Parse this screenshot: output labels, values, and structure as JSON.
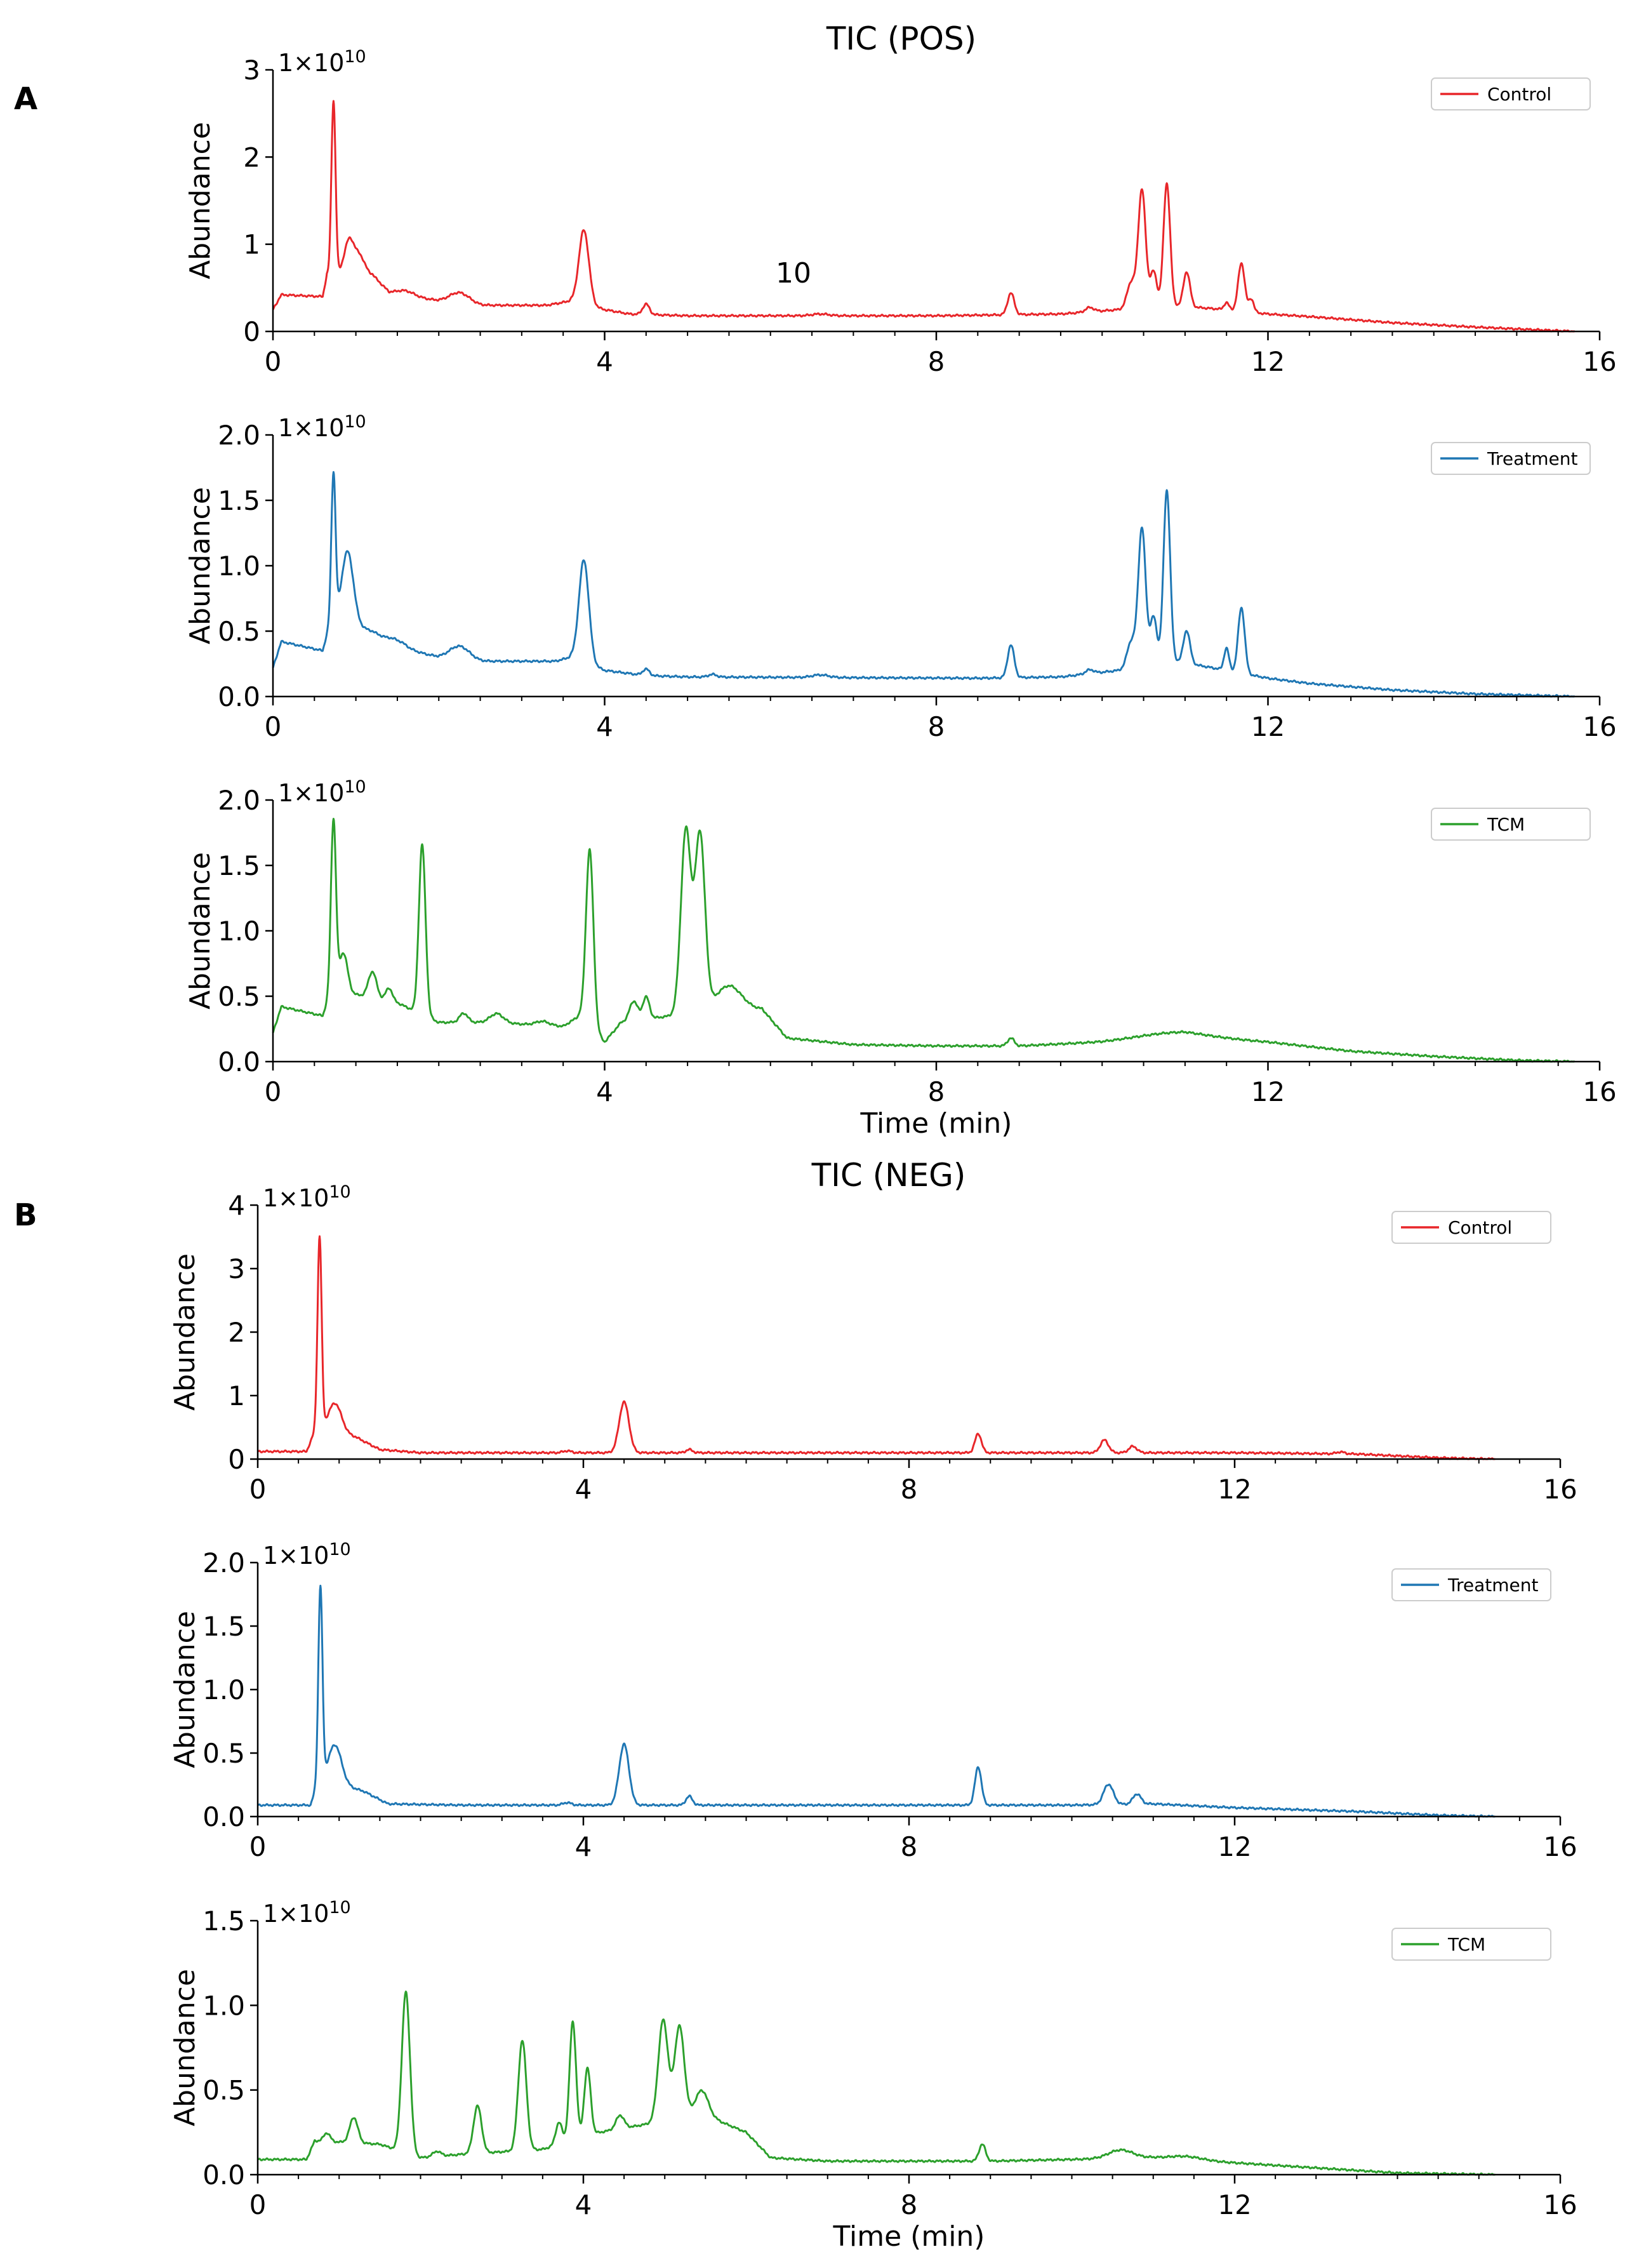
{
  "figure": {
    "panel_a": {
      "label": "A",
      "title": "TIC (POS)"
    },
    "panel_b": {
      "label": "B",
      "title": "TIC (NEG)"
    },
    "xlabel": "Time (min)",
    "stray_annotation": "10"
  },
  "colors": {
    "Control": "#e8262a",
    "Treatment": "#1f77b4",
    "TCM": "#2ca02c"
  },
  "chart_data": [
    {
      "type": "line",
      "id": "pos-control",
      "panel": "A",
      "title": "TIC (POS)",
      "series_name": "Control",
      "ylabel": "Abundance",
      "xlabel": "",
      "xlim": [
        0,
        16
      ],
      "ylim": [
        0,
        3
      ],
      "yticks": [
        "0",
        "1",
        "2",
        "3"
      ],
      "xticks": [
        "0",
        "4",
        "8",
        "12",
        "16"
      ],
      "scale_base": "1×10",
      "scale_exp": "10",
      "legend": "top-right",
      "xrange": [
        0,
        15.7
      ],
      "baseline": [
        [
          0,
          0.25
        ],
        [
          0.1,
          0.42
        ],
        [
          0.6,
          0.4
        ],
        [
          0.65,
          0.65
        ],
        [
          1.2,
          0.65
        ],
        [
          1.4,
          0.45
        ],
        [
          2.0,
          0.35
        ],
        [
          2.5,
          0.3
        ],
        [
          3.3,
          0.3
        ],
        [
          3.6,
          0.35
        ],
        [
          4.0,
          0.25
        ],
        [
          4.3,
          0.2
        ],
        [
          5.0,
          0.18
        ],
        [
          8.0,
          0.18
        ],
        [
          9.5,
          0.2
        ],
        [
          10.2,
          0.25
        ],
        [
          10.8,
          0.3
        ],
        [
          11.5,
          0.25
        ],
        [
          12.0,
          0.2
        ],
        [
          12.5,
          0.17
        ],
        [
          13.5,
          0.1
        ],
        [
          14.5,
          0.05
        ],
        [
          15.2,
          0.02
        ],
        [
          15.7,
          0
        ]
      ],
      "peaks": [
        [
          0.73,
          2.0,
          0.025
        ],
        [
          0.92,
          0.4,
          0.06
        ],
        [
          1.05,
          0.2,
          0.06
        ],
        [
          1.6,
          0.05,
          0.1
        ],
        [
          2.25,
          0.12,
          0.12
        ],
        [
          3.75,
          0.85,
          0.06
        ],
        [
          4.5,
          0.12,
          0.04
        ],
        [
          6.6,
          0.02,
          0.1
        ],
        [
          8.9,
          0.25,
          0.04
        ],
        [
          9.85,
          0.05,
          0.05
        ],
        [
          10.35,
          0.3,
          0.05
        ],
        [
          10.48,
          1.35,
          0.045
        ],
        [
          10.62,
          0.4,
          0.04
        ],
        [
          10.78,
          1.4,
          0.04
        ],
        [
          11.02,
          0.4,
          0.04
        ],
        [
          11.5,
          0.08,
          0.03
        ],
        [
          11.68,
          0.55,
          0.04
        ],
        [
          11.8,
          0.15,
          0.03
        ]
      ]
    },
    {
      "type": "line",
      "id": "pos-treatment",
      "panel": "A",
      "title": "",
      "series_name": "Treatment",
      "ylabel": "Abundance",
      "xlabel": "",
      "xlim": [
        0,
        16
      ],
      "ylim": [
        0,
        2
      ],
      "yticks": [
        "0.0",
        "0.5",
        "1.0",
        "1.5",
        "2.0"
      ],
      "xticks": [
        "0",
        "4",
        "8",
        "12",
        "16"
      ],
      "scale_base": "1×10",
      "scale_exp": "10",
      "legend": "top-right",
      "xrange": [
        0,
        15.7
      ],
      "baseline": [
        [
          0,
          0.22
        ],
        [
          0.1,
          0.42
        ],
        [
          0.6,
          0.35
        ],
        [
          0.7,
          0.6
        ],
        [
          1.2,
          0.5
        ],
        [
          1.5,
          0.38
        ],
        [
          2.0,
          0.3
        ],
        [
          2.5,
          0.27
        ],
        [
          3.4,
          0.27
        ],
        [
          3.6,
          0.3
        ],
        [
          4.0,
          0.2
        ],
        [
          4.5,
          0.16
        ],
        [
          5.0,
          0.15
        ],
        [
          8.5,
          0.14
        ],
        [
          9.5,
          0.15
        ],
        [
          10.2,
          0.2
        ],
        [
          10.8,
          0.28
        ],
        [
          11.5,
          0.2
        ],
        [
          12.0,
          0.14
        ],
        [
          12.5,
          0.1
        ],
        [
          13.5,
          0.05
        ],
        [
          14.5,
          0.02
        ],
        [
          15.7,
          0
        ]
      ],
      "peaks": [
        [
          0.73,
          1.1,
          0.025
        ],
        [
          0.9,
          0.55,
          0.07
        ],
        [
          1.5,
          0.05,
          0.1
        ],
        [
          2.25,
          0.1,
          0.12
        ],
        [
          3.75,
          0.78,
          0.06
        ],
        [
          4.5,
          0.05,
          0.04
        ],
        [
          5.3,
          0.02,
          0.05
        ],
        [
          6.6,
          0.02,
          0.1
        ],
        [
          8.9,
          0.25,
          0.04
        ],
        [
          9.85,
          0.03,
          0.05
        ],
        [
          10.35,
          0.2,
          0.05
        ],
        [
          10.48,
          1.05,
          0.045
        ],
        [
          10.62,
          0.35,
          0.04
        ],
        [
          10.78,
          1.3,
          0.04
        ],
        [
          11.02,
          0.25,
          0.04
        ],
        [
          11.5,
          0.17,
          0.03
        ],
        [
          11.68,
          0.5,
          0.04
        ]
      ]
    },
    {
      "type": "line",
      "id": "pos-tcm",
      "panel": "A",
      "title": "",
      "series_name": "TCM",
      "ylabel": "Abundance",
      "xlabel": "Time (min)",
      "xlim": [
        0,
        16
      ],
      "ylim": [
        0,
        2
      ],
      "yticks": [
        "0.0",
        "0.5",
        "1.0",
        "1.5",
        "2.0"
      ],
      "xticks": [
        "0",
        "4",
        "8",
        "12",
        "16"
      ],
      "scale_base": "1×10",
      "scale_exp": "10",
      "legend": "top-right",
      "xrange": [
        0,
        15.7
      ],
      "baseline": [
        [
          0,
          0.22
        ],
        [
          0.1,
          0.42
        ],
        [
          0.6,
          0.35
        ],
        [
          0.7,
          0.55
        ],
        [
          1.5,
          0.45
        ],
        [
          2.0,
          0.3
        ],
        [
          2.6,
          0.3
        ],
        [
          3.5,
          0.27
        ],
        [
          3.7,
          0.35
        ],
        [
          4.0,
          0.15
        ],
        [
          4.2,
          0.3
        ],
        [
          4.8,
          0.35
        ],
        [
          5.3,
          0.4
        ],
        [
          5.9,
          0.4
        ],
        [
          6.2,
          0.18
        ],
        [
          7.0,
          0.13
        ],
        [
          8.0,
          0.12
        ],
        [
          9.0,
          0.12
        ],
        [
          10.0,
          0.15
        ],
        [
          11.0,
          0.2
        ],
        [
          12.0,
          0.15
        ],
        [
          13.0,
          0.08
        ],
        [
          14.0,
          0.04
        ],
        [
          15.0,
          0.01
        ],
        [
          15.7,
          0
        ]
      ],
      "peaks": [
        [
          0.73,
          1.3,
          0.03
        ],
        [
          0.85,
          0.3,
          0.05
        ],
        [
          1.2,
          0.2,
          0.05
        ],
        [
          1.4,
          0.1,
          0.04
        ],
        [
          1.8,
          1.3,
          0.04
        ],
        [
          2.3,
          0.07,
          0.05
        ],
        [
          2.7,
          0.07,
          0.08
        ],
        [
          3.25,
          0.03,
          0.08
        ],
        [
          3.82,
          1.35,
          0.045
        ],
        [
          4.35,
          0.15,
          0.05
        ],
        [
          4.5,
          0.17,
          0.04
        ],
        [
          4.98,
          1.4,
          0.06
        ],
        [
          5.15,
          1.35,
          0.06
        ],
        [
          5.5,
          0.18,
          0.15
        ],
        [
          8.9,
          0.06,
          0.04
        ],
        [
          10.8,
          0.03,
          0.4
        ]
      ]
    },
    {
      "type": "line",
      "id": "neg-control",
      "panel": "B",
      "title": "TIC (NEG)",
      "series_name": "Control",
      "ylabel": "Abundance",
      "xlabel": "",
      "xlim": [
        0,
        16
      ],
      "ylim": [
        0,
        4
      ],
      "yticks": [
        "0",
        "1",
        "2",
        "3",
        "4"
      ],
      "xticks": [
        "0",
        "4",
        "8",
        "12",
        "16"
      ],
      "scale_base": "1×10",
      "scale_exp": "10",
      "legend": "top-right",
      "xrange": [
        0,
        15.2
      ],
      "baseline": [
        [
          0,
          0.12
        ],
        [
          0.6,
          0.12
        ],
        [
          0.72,
          0.5
        ],
        [
          1.2,
          0.35
        ],
        [
          1.5,
          0.15
        ],
        [
          2.0,
          0.1
        ],
        [
          4.0,
          0.1
        ],
        [
          8.0,
          0.1
        ],
        [
          12.0,
          0.1
        ],
        [
          13.5,
          0.08
        ],
        [
          14.5,
          0.02
        ],
        [
          15.2,
          0
        ]
      ],
      "peaks": [
        [
          0.76,
          3.0,
          0.025
        ],
        [
          0.95,
          0.45,
          0.08
        ],
        [
          3.8,
          0.03,
          0.05
        ],
        [
          4.5,
          0.8,
          0.06
        ],
        [
          5.3,
          0.05,
          0.04
        ],
        [
          8.85,
          0.3,
          0.04
        ],
        [
          10.4,
          0.2,
          0.05
        ],
        [
          10.75,
          0.1,
          0.05
        ],
        [
          13.3,
          0.03,
          0.05
        ]
      ]
    },
    {
      "type": "line",
      "id": "neg-treatment",
      "panel": "B",
      "title": "",
      "series_name": "Treatment",
      "ylabel": "Abundance",
      "xlabel": "",
      "xlim": [
        0,
        16
      ],
      "ylim": [
        0,
        2
      ],
      "yticks": [
        "0.0",
        "0.5",
        "1.0",
        "1.5",
        "2.0"
      ],
      "xticks": [
        "0",
        "4",
        "8",
        "12",
        "16"
      ],
      "scale_base": "1×10",
      "scale_exp": "10",
      "legend": "top-right",
      "xrange": [
        0,
        15.2
      ],
      "baseline": [
        [
          0,
          0.09
        ],
        [
          0.65,
          0.09
        ],
        [
          0.75,
          0.3
        ],
        [
          1.3,
          0.2
        ],
        [
          1.6,
          0.1
        ],
        [
          2.5,
          0.09
        ],
        [
          4.0,
          0.09
        ],
        [
          8.0,
          0.09
        ],
        [
          10.0,
          0.09
        ],
        [
          11.0,
          0.1
        ],
        [
          12.0,
          0.07
        ],
        [
          13.5,
          0.04
        ],
        [
          14.5,
          0.01
        ],
        [
          15.2,
          0
        ]
      ],
      "peaks": [
        [
          0.77,
          1.5,
          0.025
        ],
        [
          0.95,
          0.3,
          0.08
        ],
        [
          3.8,
          0.02,
          0.05
        ],
        [
          4.5,
          0.48,
          0.06
        ],
        [
          5.3,
          0.07,
          0.04
        ],
        [
          8.85,
          0.3,
          0.04
        ],
        [
          10.45,
          0.16,
          0.06
        ],
        [
          10.8,
          0.08,
          0.05
        ]
      ]
    },
    {
      "type": "line",
      "id": "neg-tcm",
      "panel": "B",
      "title": "",
      "series_name": "TCM",
      "ylabel": "Abundance",
      "xlabel": "Time (min)",
      "xlim": [
        0,
        16
      ],
      "ylim": [
        0,
        1.5
      ],
      "yticks": [
        "0.0",
        "0.5",
        "1.0",
        "1.5"
      ],
      "xticks": [
        "0",
        "4",
        "8",
        "12",
        "16"
      ],
      "scale_base": "1×10",
      "scale_exp": "10",
      "legend": "top-right",
      "xrange": [
        0,
        15.2
      ],
      "baseline": [
        [
          0,
          0.09
        ],
        [
          0.6,
          0.09
        ],
        [
          0.7,
          0.2
        ],
        [
          1.5,
          0.18
        ],
        [
          2.0,
          0.1
        ],
        [
          2.5,
          0.12
        ],
        [
          3.5,
          0.15
        ],
        [
          4.2,
          0.25
        ],
        [
          4.8,
          0.3
        ],
        [
          5.5,
          0.35
        ],
        [
          6.0,
          0.25
        ],
        [
          6.3,
          0.1
        ],
        [
          7.0,
          0.08
        ],
        [
          9.0,
          0.08
        ],
        [
          10.0,
          0.09
        ],
        [
          11.0,
          0.1
        ],
        [
          12.0,
          0.07
        ],
        [
          13.0,
          0.04
        ],
        [
          14.0,
          0.01
        ],
        [
          15.2,
          0
        ]
      ],
      "peaks": [
        [
          0.85,
          0.05,
          0.04
        ],
        [
          1.18,
          0.15,
          0.05
        ],
        [
          1.82,
          0.95,
          0.05
        ],
        [
          2.2,
          0.03,
          0.05
        ],
        [
          2.7,
          0.28,
          0.05
        ],
        [
          3.25,
          0.65,
          0.05
        ],
        [
          3.7,
          0.13,
          0.04
        ],
        [
          3.87,
          0.7,
          0.04
        ],
        [
          4.05,
          0.4,
          0.04
        ],
        [
          4.45,
          0.08,
          0.05
        ],
        [
          4.98,
          0.6,
          0.06
        ],
        [
          5.18,
          0.55,
          0.06
        ],
        [
          5.45,
          0.15,
          0.08
        ],
        [
          8.9,
          0.1,
          0.04
        ],
        [
          10.6,
          0.05,
          0.15
        ],
        [
          11.4,
          0.02,
          0.2
        ]
      ]
    }
  ]
}
